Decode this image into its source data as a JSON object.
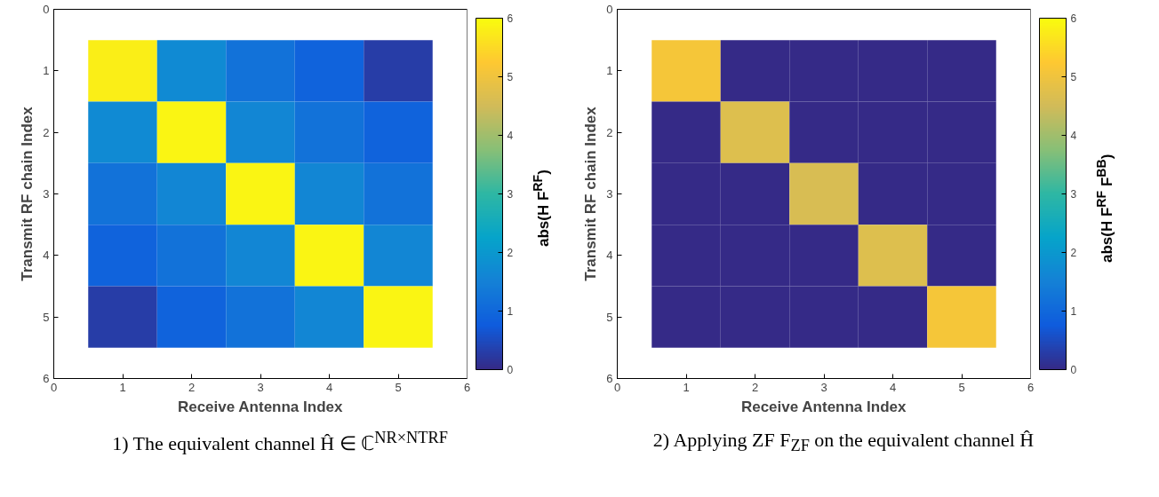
{
  "chart_data": [
    {
      "type": "heatmap",
      "x": [
        1,
        2,
        3,
        4,
        5
      ],
      "y": [
        1,
        2,
        3,
        4,
        5
      ],
      "xlabel": "Receive Antenna Index",
      "ylabel": "Transmit RF chain Index",
      "clabel": "abs(H F$^{RF}$)",
      "annotations": [
        "1) The equivalent channel Ĥ ∈ ℂ$^{NR×NTRF}$"
      ],
      "cells": [
        [
          5.8,
          1.7,
          1.2,
          0.9,
          0.3
        ],
        [
          1.7,
          5.9,
          1.6,
          1.2,
          0.9
        ],
        [
          1.2,
          1.6,
          5.9,
          1.6,
          1.2
        ],
        [
          0.9,
          1.2,
          1.6,
          5.9,
          1.6
        ],
        [
          0.3,
          0.9,
          1.2,
          1.6,
          5.9
        ]
      ],
      "clim": [
        0,
        6
      ],
      "cticks": [
        0,
        1,
        2,
        3,
        4,
        5,
        6
      ],
      "xlim": [
        0,
        6
      ],
      "xticks": [
        0,
        1,
        2,
        3,
        4,
        5,
        6
      ],
      "ylim": [
        6,
        0
      ],
      "yticks": [
        0,
        1,
        2,
        3,
        4,
        5,
        6
      ],
      "grid": false
    },
    {
      "type": "heatmap",
      "x": [
        1,
        2,
        3,
        4,
        5
      ],
      "y": [
        1,
        2,
        3,
        4,
        5
      ],
      "xlabel": "Receive Antenna Index",
      "ylabel": "Transmit RF chain Index",
      "clabel": "abs(H F$^{RF}$ F$^{BB}$)",
      "annotations": [
        "2) Applying ZF F$_{ZF}$ on the equivalent channel Ĥ"
      ],
      "cells": [
        [
          5.1,
          0,
          0,
          0,
          0
        ],
        [
          0,
          4.7,
          0,
          0,
          0
        ],
        [
          0,
          0,
          4.6,
          0,
          0
        ],
        [
          0,
          0,
          0,
          4.7,
          0
        ],
        [
          0,
          0,
          0,
          0,
          5.1
        ]
      ],
      "clim": [
        0,
        6
      ],
      "cticks": [
        0,
        1,
        2,
        3,
        4,
        5,
        6
      ],
      "xlim": [
        0,
        6
      ],
      "xticks": [
        0,
        1,
        2,
        3,
        4,
        5,
        6
      ],
      "ylim": [
        6,
        0
      ],
      "yticks": [
        0,
        1,
        2,
        3,
        4,
        5,
        6
      ],
      "grid": false
    }
  ]
}
